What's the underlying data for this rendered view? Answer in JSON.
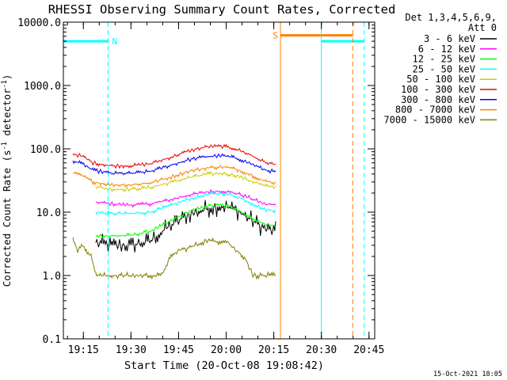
{
  "chart_data": {
    "type": "line",
    "title": "RHESSI Observing Summary Count Rates, Corrected",
    "xlabel": "Start Time (20-Oct-08 19:08:42)",
    "ylabel": "Corrected Count Rate (s⁻¹ detector⁻¹)",
    "ylabel_main": "Corrected Count Rate (s",
    "ylabel_sup1": "-1",
    "ylabel_mid": " detector",
    "ylabel_sup2": "-1",
    "ylabel_end": ")",
    "y_scale": "log",
    "ylim": [
      0.1,
      10000
    ],
    "xlim": [
      19.145,
      20.78
    ],
    "grid": false,
    "x_ticks": [
      {
        "label": "19:15",
        "value": 19.25
      },
      {
        "label": "19:30",
        "value": 19.5
      },
      {
        "label": "19:45",
        "value": 19.75
      },
      {
        "label": "20:00",
        "value": 20.0
      },
      {
        "label": "20:15",
        "value": 20.25
      },
      {
        "label": "20:30",
        "value": 20.5
      },
      {
        "label": "20:45",
        "value": 20.75
      }
    ],
    "y_ticks": [
      {
        "label": "0.1",
        "value": 0.1
      },
      {
        "label": "1.0",
        "value": 1
      },
      {
        "label": "10.0",
        "value": 10
      },
      {
        "label": "100.0",
        "value": 100
      },
      {
        "label": "1000.0",
        "value": 1000
      },
      {
        "label": "10000.0",
        "value": 10000
      }
    ],
    "legend_header": [
      "Det 1,3,4,5,6,9,",
      "Att 0"
    ],
    "legend_position": "right",
    "series": [
      {
        "name": "3 - 6 keV",
        "color": "#000000",
        "points": [
          [
            19.315,
            3.3
          ],
          [
            19.4,
            3.0
          ],
          [
            19.5,
            3.0
          ],
          [
            19.6,
            3.5
          ],
          [
            19.7,
            6.0
          ],
          [
            19.8,
            9.0
          ],
          [
            19.9,
            11.5
          ],
          [
            19.98,
            12.5
          ],
          [
            20.05,
            11.0
          ],
          [
            20.12,
            8.0
          ],
          [
            20.2,
            5.5
          ],
          [
            20.26,
            5.0
          ]
        ]
      },
      {
        "name": "6 - 12 keV",
        "color": "#ff00ff",
        "points": [
          [
            19.315,
            14.5
          ],
          [
            19.4,
            13.5
          ],
          [
            19.5,
            13.0
          ],
          [
            19.6,
            13.5
          ],
          [
            19.7,
            15.5
          ],
          [
            19.8,
            18.5
          ],
          [
            19.9,
            21.0
          ],
          [
            19.98,
            21.5
          ],
          [
            20.05,
            20.0
          ],
          [
            20.12,
            17.0
          ],
          [
            20.2,
            13.5
          ],
          [
            20.26,
            13.0
          ]
        ]
      },
      {
        "name": "12 - 25 keV",
        "color": "#00ff00",
        "points": [
          [
            19.315,
            4.3
          ],
          [
            19.4,
            4.2
          ],
          [
            19.5,
            4.3
          ],
          [
            19.6,
            5.0
          ],
          [
            19.7,
            7.0
          ],
          [
            19.8,
            10.0
          ],
          [
            19.9,
            12.5
          ],
          [
            19.98,
            13.0
          ],
          [
            20.05,
            11.5
          ],
          [
            20.12,
            8.5
          ],
          [
            20.2,
            6.5
          ],
          [
            20.26,
            6.0
          ]
        ]
      },
      {
        "name": "25 - 50 keV",
        "color": "#00ffff",
        "points": [
          [
            19.315,
            10.0
          ],
          [
            19.4,
            9.5
          ],
          [
            19.5,
            9.5
          ],
          [
            19.6,
            10.0
          ],
          [
            19.7,
            12.5
          ],
          [
            19.8,
            16.0
          ],
          [
            19.9,
            19.0
          ],
          [
            19.98,
            20.0
          ],
          [
            20.05,
            18.0
          ],
          [
            20.12,
            14.5
          ],
          [
            20.2,
            11.0
          ],
          [
            20.26,
            10.5
          ]
        ]
      },
      {
        "name": "50 - 100 keV",
        "color": "#cccc00",
        "points": [
          [
            19.315,
            25.0
          ],
          [
            19.4,
            23.0
          ],
          [
            19.5,
            23.0
          ],
          [
            19.6,
            24.5
          ],
          [
            19.7,
            29.0
          ],
          [
            19.8,
            35.0
          ],
          [
            19.9,
            40.0
          ],
          [
            19.98,
            41.0
          ],
          [
            20.05,
            38.0
          ],
          [
            20.12,
            32.0
          ],
          [
            20.2,
            26.0
          ],
          [
            20.26,
            25.0
          ]
        ]
      },
      {
        "name": "100 - 300 keV",
        "color": "#ee0000",
        "points": [
          [
            19.195,
            84.0
          ],
          [
            19.25,
            75.0
          ],
          [
            19.3,
            60.0
          ],
          [
            19.4,
            54.0
          ],
          [
            19.5,
            54.0
          ],
          [
            19.6,
            58.0
          ],
          [
            19.7,
            72.0
          ],
          [
            19.8,
            92.0
          ],
          [
            19.9,
            108.0
          ],
          [
            19.98,
            110.0
          ],
          [
            20.05,
            100.0
          ],
          [
            20.12,
            82.0
          ],
          [
            20.2,
            62.0
          ],
          [
            20.26,
            56.0
          ]
        ]
      },
      {
        "name": "300 - 800 keV",
        "color": "#0000ee",
        "points": [
          [
            19.195,
            65.0
          ],
          [
            19.25,
            57.0
          ],
          [
            19.3,
            46.0
          ],
          [
            19.4,
            41.0
          ],
          [
            19.5,
            41.0
          ],
          [
            19.6,
            44.0
          ],
          [
            19.7,
            54.0
          ],
          [
            19.8,
            67.0
          ],
          [
            19.9,
            76.0
          ],
          [
            19.98,
            78.0
          ],
          [
            20.05,
            72.0
          ],
          [
            20.12,
            60.0
          ],
          [
            20.2,
            47.0
          ],
          [
            20.26,
            43.0
          ]
        ]
      },
      {
        "name": "800 - 7000 keV",
        "color": "#ff8000",
        "points": [
          [
            19.195,
            42.0
          ],
          [
            19.25,
            37.0
          ],
          [
            19.3,
            30.0
          ],
          [
            19.4,
            27.0
          ],
          [
            19.5,
            27.0
          ],
          [
            19.6,
            29.0
          ],
          [
            19.7,
            35.0
          ],
          [
            19.8,
            44.0
          ],
          [
            19.9,
            50.0
          ],
          [
            19.98,
            52.0
          ],
          [
            20.05,
            48.0
          ],
          [
            20.12,
            40.0
          ],
          [
            20.2,
            31.0
          ],
          [
            20.26,
            29.0
          ]
        ]
      },
      {
        "name": "7000 - 15000 keV",
        "color": "#808000",
        "points": [
          [
            19.195,
            4.0
          ],
          [
            19.22,
            2.5
          ],
          [
            19.25,
            3.0
          ],
          [
            19.29,
            2.0
          ],
          [
            19.32,
            1.0
          ],
          [
            19.5,
            1.0
          ],
          [
            19.66,
            1.0
          ],
          [
            19.7,
            1.8
          ],
          [
            19.75,
            2.5
          ],
          [
            19.8,
            2.7
          ],
          [
            19.85,
            3.1
          ],
          [
            19.9,
            3.6
          ],
          [
            19.95,
            3.4
          ],
          [
            20.0,
            3.6
          ],
          [
            20.05,
            2.5
          ],
          [
            20.1,
            1.9
          ],
          [
            20.14,
            1.0
          ],
          [
            20.26,
            1.0
          ]
        ]
      }
    ],
    "annotations": [
      {
        "type": "segment",
        "label": "N",
        "color": "#00ffff",
        "y": 5000,
        "x_start": 19.145,
        "x_end": 19.38
      },
      {
        "type": "segment",
        "label": "S",
        "color": "#ff8000",
        "y": 6200,
        "x_start": 20.285,
        "x_end": 20.665
      },
      {
        "type": "segment",
        "label": "",
        "color": "#00ffff",
        "y": 5000,
        "x_start": 20.5,
        "x_end": 20.725
      },
      {
        "type": "vline",
        "label": "",
        "color": "#00ffff",
        "style": "dashed",
        "x": 19.38
      },
      {
        "type": "vline",
        "label": "",
        "color": "#ff8000",
        "style": "solid",
        "x": 20.285
      },
      {
        "type": "vline",
        "label": "",
        "color": "#00ffff",
        "style": "solid",
        "x": 20.5
      },
      {
        "type": "vline",
        "label": "",
        "color": "#ff8000",
        "style": "dashed",
        "x": 20.665
      },
      {
        "type": "vline",
        "label": "",
        "color": "#00ffff",
        "style": "dashed",
        "x": 20.725
      }
    ]
  },
  "footer_timestamp": "15-Oct-2021 18:05"
}
